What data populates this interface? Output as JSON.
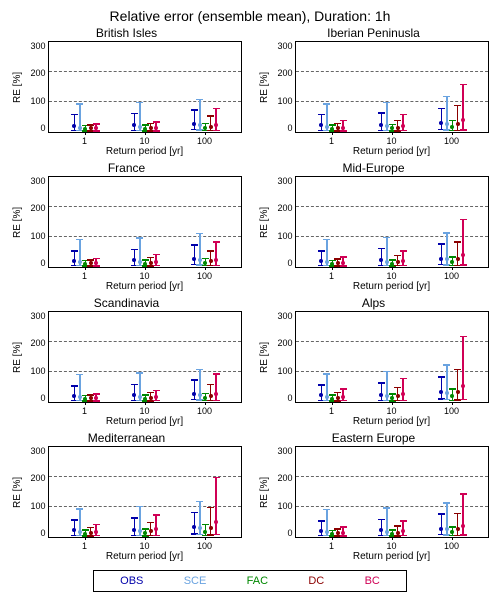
{
  "main_title": "Relative error (ensemble mean), Duration: 1h",
  "ylabel": "RE [%]",
  "xlabel": "Return period [yr]",
  "ylim": [
    0,
    300
  ],
  "yticks": [
    0,
    100,
    200,
    300
  ],
  "grid_y": [
    100,
    200
  ],
  "xticks_numeric": [
    0.6,
    1.6,
    2.6
  ],
  "xtick_labels": [
    "1",
    "10",
    "100"
  ],
  "x_range": [
    0,
    3.2
  ],
  "colors": {
    "OBS": "#0000aa",
    "SCE": "#6aa3e0",
    "FAC": "#008800",
    "DC": "#8b0000",
    "BC": "#d00055"
  },
  "series_order": [
    "OBS",
    "SCE",
    "FAC",
    "DC",
    "BC"
  ],
  "legend": [
    "OBS",
    "SCE",
    "FAC",
    "DC",
    "BC"
  ],
  "group_offsets": [
    -0.18,
    -0.09,
    0.0,
    0.09,
    0.18
  ],
  "panels": [
    {
      "title": "British Isles",
      "groups": [
        {
          "x": 0.6,
          "vals": {
            "OBS": {
              "lo": 5,
              "md": 20,
              "hi": 60
            },
            "SCE": {
              "lo": 5,
              "md": 15,
              "hi": 95
            },
            "FAC": {
              "lo": 3,
              "md": 10,
              "hi": 22
            },
            "DC": {
              "lo": 3,
              "md": 12,
              "hi": 25
            },
            "BC": {
              "lo": 3,
              "md": 12,
              "hi": 28
            }
          }
        },
        {
          "x": 1.6,
          "vals": {
            "OBS": {
              "lo": 5,
              "md": 22,
              "hi": 62
            },
            "SCE": {
              "lo": 5,
              "md": 18,
              "hi": 100
            },
            "FAC": {
              "lo": 3,
              "md": 11,
              "hi": 24
            },
            "DC": {
              "lo": 3,
              "md": 13,
              "hi": 30
            },
            "BC": {
              "lo": 3,
              "md": 13,
              "hi": 35
            }
          }
        },
        {
          "x": 2.6,
          "vals": {
            "OBS": {
              "lo": 8,
              "md": 28,
              "hi": 75
            },
            "SCE": {
              "lo": 6,
              "md": 24,
              "hi": 110
            },
            "FAC": {
              "lo": 4,
              "md": 14,
              "hi": 30
            },
            "DC": {
              "lo": 4,
              "md": 18,
              "hi": 55
            },
            "BC": {
              "lo": 4,
              "md": 22,
              "hi": 80
            }
          }
        }
      ]
    },
    {
      "title": "Iberian Peninusla",
      "groups": [
        {
          "x": 0.6,
          "vals": {
            "OBS": {
              "lo": 5,
              "md": 22,
              "hi": 60
            },
            "SCE": {
              "lo": 5,
              "md": 18,
              "hi": 95
            },
            "FAC": {
              "lo": 3,
              "md": 11,
              "hi": 24
            },
            "DC": {
              "lo": 3,
              "md": 13,
              "hi": 30
            },
            "BC": {
              "lo": 3,
              "md": 15,
              "hi": 40
            }
          }
        },
        {
          "x": 1.6,
          "vals": {
            "OBS": {
              "lo": 5,
              "md": 24,
              "hi": 65
            },
            "SCE": {
              "lo": 5,
              "md": 20,
              "hi": 100
            },
            "FAC": {
              "lo": 3,
              "md": 12,
              "hi": 26
            },
            "DC": {
              "lo": 3,
              "md": 15,
              "hi": 40
            },
            "BC": {
              "lo": 4,
              "md": 20,
              "hi": 60
            }
          }
        },
        {
          "x": 2.6,
          "vals": {
            "OBS": {
              "lo": 8,
              "md": 30,
              "hi": 80
            },
            "SCE": {
              "lo": 6,
              "md": 28,
              "hi": 120
            },
            "FAC": {
              "lo": 5,
              "md": 18,
              "hi": 40
            },
            "DC": {
              "lo": 5,
              "md": 28,
              "hi": 90
            },
            "BC": {
              "lo": 6,
              "md": 40,
              "hi": 160
            }
          }
        }
      ]
    },
    {
      "title": "France",
      "groups": [
        {
          "x": 0.6,
          "vals": {
            "OBS": {
              "lo": 5,
              "md": 20,
              "hi": 55
            },
            "SCE": {
              "lo": 5,
              "md": 16,
              "hi": 92
            },
            "FAC": {
              "lo": 3,
              "md": 10,
              "hi": 22
            },
            "DC": {
              "lo": 3,
              "md": 12,
              "hi": 25
            },
            "BC": {
              "lo": 3,
              "md": 12,
              "hi": 30
            }
          }
        },
        {
          "x": 1.6,
          "vals": {
            "OBS": {
              "lo": 5,
              "md": 22,
              "hi": 60
            },
            "SCE": {
              "lo": 5,
              "md": 18,
              "hi": 98
            },
            "FAC": {
              "lo": 3,
              "md": 11,
              "hi": 24
            },
            "DC": {
              "lo": 3,
              "md": 14,
              "hi": 32
            },
            "BC": {
              "lo": 4,
              "md": 16,
              "hi": 42
            }
          }
        },
        {
          "x": 2.6,
          "vals": {
            "OBS": {
              "lo": 8,
              "md": 28,
              "hi": 75
            },
            "SCE": {
              "lo": 6,
              "md": 24,
              "hi": 112
            },
            "FAC": {
              "lo": 4,
              "md": 14,
              "hi": 30
            },
            "DC": {
              "lo": 4,
              "md": 20,
              "hi": 55
            },
            "BC": {
              "lo": 5,
              "md": 25,
              "hi": 85
            }
          }
        }
      ]
    },
    {
      "title": "Mid-Europe",
      "groups": [
        {
          "x": 0.6,
          "vals": {
            "OBS": {
              "lo": 5,
              "md": 20,
              "hi": 55
            },
            "SCE": {
              "lo": 5,
              "md": 16,
              "hi": 92
            },
            "FAC": {
              "lo": 3,
              "md": 10,
              "hi": 22
            },
            "DC": {
              "lo": 3,
              "md": 12,
              "hi": 28
            },
            "BC": {
              "lo": 3,
              "md": 14,
              "hi": 35
            }
          }
        },
        {
          "x": 1.6,
          "vals": {
            "OBS": {
              "lo": 5,
              "md": 22,
              "hi": 62
            },
            "SCE": {
              "lo": 5,
              "md": 18,
              "hi": 100
            },
            "FAC": {
              "lo": 3,
              "md": 11,
              "hi": 24
            },
            "DC": {
              "lo": 4,
              "md": 16,
              "hi": 40
            },
            "BC": {
              "lo": 4,
              "md": 20,
              "hi": 55
            }
          }
        },
        {
          "x": 2.6,
          "vals": {
            "OBS": {
              "lo": 8,
              "md": 28,
              "hi": 78
            },
            "SCE": {
              "lo": 6,
              "md": 26,
              "hi": 115
            },
            "FAC": {
              "lo": 4,
              "md": 16,
              "hi": 35
            },
            "DC": {
              "lo": 5,
              "md": 28,
              "hi": 85
            },
            "BC": {
              "lo": 6,
              "md": 40,
              "hi": 160
            }
          }
        }
      ]
    },
    {
      "title": "Scandinavia",
      "groups": [
        {
          "x": 0.6,
          "vals": {
            "OBS": {
              "lo": 5,
              "md": 20,
              "hi": 55
            },
            "SCE": {
              "lo": 5,
              "md": 16,
              "hi": 92
            },
            "FAC": {
              "lo": 3,
              "md": 10,
              "hi": 22
            },
            "DC": {
              "lo": 3,
              "md": 12,
              "hi": 25
            },
            "BC": {
              "lo": 3,
              "md": 12,
              "hi": 28
            }
          }
        },
        {
          "x": 1.6,
          "vals": {
            "OBS": {
              "lo": 5,
              "md": 22,
              "hi": 60
            },
            "SCE": {
              "lo": 5,
              "md": 18,
              "hi": 98
            },
            "FAC": {
              "lo": 3,
              "md": 11,
              "hi": 24
            },
            "DC": {
              "lo": 3,
              "md": 14,
              "hi": 32
            },
            "BC": {
              "lo": 4,
              "md": 16,
              "hi": 40
            }
          }
        },
        {
          "x": 2.6,
          "vals": {
            "OBS": {
              "lo": 8,
              "md": 28,
              "hi": 75
            },
            "SCE": {
              "lo": 6,
              "md": 24,
              "hi": 110
            },
            "FAC": {
              "lo": 4,
              "md": 14,
              "hi": 30
            },
            "DC": {
              "lo": 4,
              "md": 20,
              "hi": 60
            },
            "BC": {
              "lo": 5,
              "md": 28,
              "hi": 95
            }
          }
        }
      ]
    },
    {
      "title": "Alps",
      "groups": [
        {
          "x": 0.6,
          "vals": {
            "OBS": {
              "lo": 5,
              "md": 22,
              "hi": 58
            },
            "SCE": {
              "lo": 5,
              "md": 18,
              "hi": 95
            },
            "FAC": {
              "lo": 3,
              "md": 11,
              "hi": 24
            },
            "DC": {
              "lo": 3,
              "md": 14,
              "hi": 32
            },
            "BC": {
              "lo": 4,
              "md": 18,
              "hi": 45
            }
          }
        },
        {
          "x": 1.6,
          "vals": {
            "OBS": {
              "lo": 5,
              "md": 24,
              "hi": 65
            },
            "SCE": {
              "lo": 5,
              "md": 20,
              "hi": 102
            },
            "FAC": {
              "lo": 3,
              "md": 13,
              "hi": 28
            },
            "DC": {
              "lo": 4,
              "md": 20,
              "hi": 50
            },
            "BC": {
              "lo": 5,
              "md": 28,
              "hi": 80
            }
          }
        },
        {
          "x": 2.6,
          "vals": {
            "OBS": {
              "lo": 10,
              "md": 32,
              "hi": 85
            },
            "SCE": {
              "lo": 7,
              "md": 30,
              "hi": 125
            },
            "FAC": {
              "lo": 5,
              "md": 20,
              "hi": 45
            },
            "DC": {
              "lo": 6,
              "md": 35,
              "hi": 110
            },
            "BC": {
              "lo": 8,
              "md": 55,
              "hi": 220
            }
          }
        }
      ]
    },
    {
      "title": "Mediterranean",
      "groups": [
        {
          "x": 0.6,
          "vals": {
            "OBS": {
              "lo": 5,
              "md": 22,
              "hi": 58
            },
            "SCE": {
              "lo": 5,
              "md": 18,
              "hi": 95
            },
            "FAC": {
              "lo": 3,
              "md": 11,
              "hi": 24
            },
            "DC": {
              "lo": 3,
              "md": 14,
              "hi": 32
            },
            "BC": {
              "lo": 4,
              "md": 16,
              "hi": 42
            }
          }
        },
        {
          "x": 1.6,
          "vals": {
            "OBS": {
              "lo": 5,
              "md": 24,
              "hi": 65
            },
            "SCE": {
              "lo": 5,
              "md": 20,
              "hi": 102
            },
            "FAC": {
              "lo": 3,
              "md": 13,
              "hi": 28
            },
            "DC": {
              "lo": 4,
              "md": 20,
              "hi": 50
            },
            "BC": {
              "lo": 5,
              "md": 26,
              "hi": 75
            }
          }
        },
        {
          "x": 2.6,
          "vals": {
            "OBS": {
              "lo": 10,
              "md": 32,
              "hi": 82
            },
            "SCE": {
              "lo": 7,
              "md": 30,
              "hi": 120
            },
            "FAC": {
              "lo": 5,
              "md": 18,
              "hi": 42
            },
            "DC": {
              "lo": 6,
              "md": 30,
              "hi": 100
            },
            "BC": {
              "lo": 8,
              "md": 50,
              "hi": 200
            }
          }
        }
      ]
    },
    {
      "title": "Eastern Europe",
      "groups": [
        {
          "x": 0.6,
          "vals": {
            "OBS": {
              "lo": 5,
              "md": 20,
              "hi": 55
            },
            "SCE": {
              "lo": 5,
              "md": 16,
              "hi": 92
            },
            "FAC": {
              "lo": 3,
              "md": 10,
              "hi": 22
            },
            "DC": {
              "lo": 3,
              "md": 12,
              "hi": 28
            },
            "BC": {
              "lo": 3,
              "md": 14,
              "hi": 35
            }
          }
        },
        {
          "x": 1.6,
          "vals": {
            "OBS": {
              "lo": 5,
              "md": 22,
              "hi": 60
            },
            "SCE": {
              "lo": 5,
              "md": 18,
              "hi": 98
            },
            "FAC": {
              "lo": 3,
              "md": 11,
              "hi": 24
            },
            "DC": {
              "lo": 3,
              "md": 15,
              "hi": 38
            },
            "BC": {
              "lo": 4,
              "md": 20,
              "hi": 55
            }
          }
        },
        {
          "x": 2.6,
          "vals": {
            "OBS": {
              "lo": 8,
              "md": 28,
              "hi": 78
            },
            "SCE": {
              "lo": 6,
              "md": 26,
              "hi": 115
            },
            "FAC": {
              "lo": 4,
              "md": 16,
              "hi": 35
            },
            "DC": {
              "lo": 5,
              "md": 26,
              "hi": 80
            },
            "BC": {
              "lo": 6,
              "md": 38,
              "hi": 145
            }
          }
        }
      ]
    }
  ]
}
